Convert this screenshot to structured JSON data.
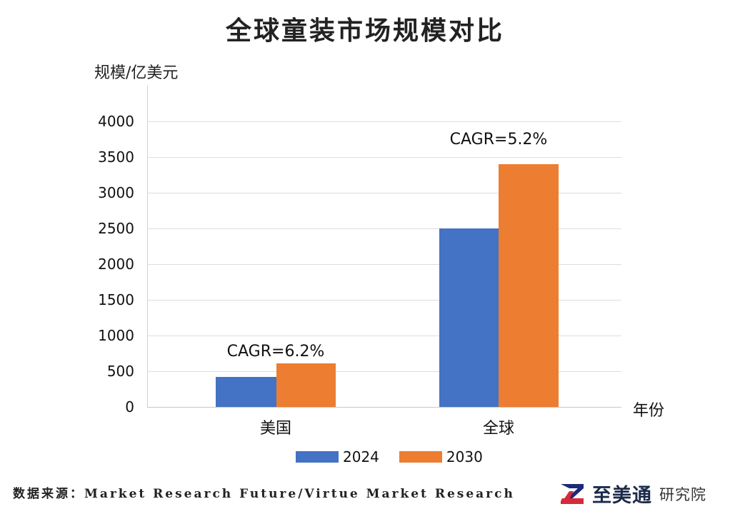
{
  "title": "全球童装市场规模对比",
  "y_axis_label": "规模/亿美元",
  "x_axis_label": "年份",
  "y_ticks": [
    "0",
    "500",
    "1000",
    "1500",
    "2000",
    "2500",
    "3000",
    "3500",
    "4000"
  ],
  "categories": [
    "美国",
    "全球"
  ],
  "annotations": [
    "CAGR=6.2%",
    "CAGR=5.2%"
  ],
  "legend": [
    {
      "label": "2024",
      "color": "#4472C4"
    },
    {
      "label": "2030",
      "color": "#ED7D31"
    }
  ],
  "source": "数据来源：Market Research Future/Virtue Market Research",
  "logo": {
    "brand": "至美通",
    "sub": "研究院"
  },
  "chart_data": {
    "type": "bar",
    "title": "全球童装市场规模对比",
    "xlabel": "年份",
    "ylabel": "规模/亿美元",
    "categories": [
      "美国",
      "全球"
    ],
    "series": [
      {
        "name": "2024",
        "color": "#4472C4",
        "values": [
          420,
          2500
        ]
      },
      {
        "name": "2030",
        "color": "#ED7D31",
        "values": [
          610,
          3400
        ]
      }
    ],
    "annotations": [
      {
        "category": "美国",
        "text": "CAGR=6.2%"
      },
      {
        "category": "全球",
        "text": "CAGR=5.2%"
      }
    ],
    "ylim": [
      0,
      4000
    ],
    "yticks": [
      0,
      500,
      1000,
      1500,
      2000,
      2500,
      3000,
      3500,
      4000
    ],
    "grid": true,
    "legend_position": "bottom"
  }
}
